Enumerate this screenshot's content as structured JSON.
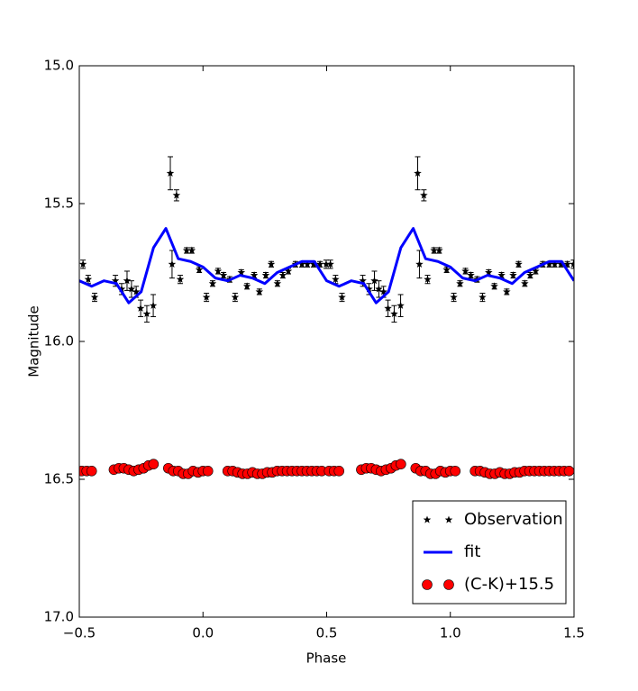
{
  "chart_data": {
    "type": "scatter",
    "xlabel": "Phase",
    "ylabel": "Magnitude",
    "xlim": [
      -0.5,
      1.5
    ],
    "ylim": [
      15.0,
      17.0
    ],
    "invert_y": true,
    "legend": "lower right",
    "xticks": [
      {
        "value": -0.5,
        "label": "−0.5"
      },
      {
        "value": 0.0,
        "label": "0.0"
      },
      {
        "value": 0.5,
        "label": "0.5"
      },
      {
        "value": 1.0,
        "label": "1.0"
      },
      {
        "value": 1.5,
        "label": "1.5"
      }
    ],
    "yticks": [
      {
        "value": 15.0,
        "label": "15.0"
      },
      {
        "value": 15.5,
        "label": "15.5"
      },
      {
        "value": 16.0,
        "label": "16.0"
      },
      {
        "value": 16.5,
        "label": "16.5"
      },
      {
        "value": 17.0,
        "label": "17.0"
      }
    ],
    "series": [
      {
        "name": "Observation",
        "type": "errorbar",
        "color": "#000000",
        "x": [
          -0.485,
          -0.464,
          -0.438,
          -0.354,
          -0.329,
          -0.307,
          -0.289,
          -0.27,
          -0.252,
          -0.227,
          -0.201,
          -0.132,
          -0.125,
          -0.107,
          -0.092,
          -0.066,
          -0.045,
          -0.015,
          0.014,
          0.039,
          0.061,
          0.083,
          0.108,
          0.13,
          0.155,
          0.178,
          0.207,
          0.228,
          0.254,
          0.276,
          0.301,
          0.323,
          0.345,
          0.374,
          0.4,
          0.422,
          0.447,
          0.473,
          0.498,
          0.515,
          0.536,
          0.562,
          0.646,
          0.671,
          0.693,
          0.711,
          0.73,
          0.748,
          0.773,
          0.799,
          0.868,
          0.875,
          0.893,
          0.908,
          0.934,
          0.955,
          0.985,
          1.014,
          1.039,
          1.061,
          1.083,
          1.108,
          1.13,
          1.155,
          1.178,
          1.207,
          1.228,
          1.254,
          1.276,
          1.301,
          1.323,
          1.345,
          1.374,
          1.4,
          1.422,
          1.447,
          1.473,
          1.498
        ],
        "values": [
          15.72,
          15.775,
          15.84,
          15.78,
          15.81,
          15.78,
          15.81,
          15.82,
          15.88,
          15.9,
          15.87,
          15.39,
          15.72,
          15.47,
          15.775,
          15.67,
          15.67,
          15.74,
          15.84,
          15.79,
          15.745,
          15.76,
          15.775,
          15.84,
          15.75,
          15.8,
          15.76,
          15.82,
          15.76,
          15.72,
          15.79,
          15.76,
          15.745,
          15.72,
          15.72,
          15.72,
          15.72,
          15.72,
          15.72,
          15.72,
          15.775,
          15.84,
          15.78,
          15.81,
          15.78,
          15.81,
          15.82,
          15.88,
          15.9,
          15.87,
          15.39,
          15.72,
          15.47,
          15.775,
          15.67,
          15.67,
          15.74,
          15.84,
          15.79,
          15.745,
          15.76,
          15.775,
          15.84,
          15.75,
          15.8,
          15.76,
          15.82,
          15.76,
          15.72,
          15.79,
          15.76,
          15.745,
          15.72,
          15.72,
          15.72,
          15.72,
          15.72,
          15.72
        ],
        "errors": [
          0.015,
          0.015,
          0.015,
          0.02,
          0.02,
          0.035,
          0.03,
          0.02,
          0.03,
          0.03,
          0.04,
          0.06,
          0.05,
          0.02,
          0.015,
          0.01,
          0.01,
          0.01,
          0.015,
          0.01,
          0.01,
          0.01,
          0.01,
          0.015,
          0.01,
          0.01,
          0.01,
          0.01,
          0.01,
          0.01,
          0.01,
          0.01,
          0.01,
          0.01,
          0.01,
          0.01,
          0.01,
          0.01,
          0.015,
          0.015,
          0.015,
          0.015,
          0.02,
          0.02,
          0.035,
          0.03,
          0.02,
          0.03,
          0.03,
          0.04,
          0.06,
          0.05,
          0.02,
          0.015,
          0.01,
          0.01,
          0.01,
          0.015,
          0.01,
          0.01,
          0.01,
          0.01,
          0.015,
          0.01,
          0.01,
          0.01,
          0.01,
          0.01,
          0.01,
          0.01,
          0.01,
          0.01,
          0.01,
          0.01,
          0.01,
          0.01,
          0.01,
          0.015
        ]
      },
      {
        "name": "fit",
        "type": "line",
        "color": "#0000ff",
        "x": [
          -0.5,
          -0.45,
          -0.4,
          -0.35,
          -0.3,
          -0.25,
          -0.2,
          -0.15,
          -0.1,
          -0.05,
          0.0,
          0.05,
          0.1,
          0.15,
          0.2,
          0.25,
          0.3,
          0.35,
          0.4,
          0.45,
          0.5,
          0.55,
          0.6,
          0.65,
          0.7,
          0.75,
          0.8,
          0.85,
          0.9,
          0.95,
          1.0,
          1.05,
          1.1,
          1.15,
          1.2,
          1.25,
          1.3,
          1.35,
          1.4,
          1.45,
          1.5
        ],
        "values": [
          15.78,
          15.8,
          15.78,
          15.79,
          15.86,
          15.82,
          15.66,
          15.59,
          15.7,
          15.71,
          15.73,
          15.77,
          15.78,
          15.76,
          15.77,
          15.79,
          15.75,
          15.73,
          15.71,
          15.71,
          15.78,
          15.8,
          15.78,
          15.79,
          15.86,
          15.82,
          15.66,
          15.59,
          15.7,
          15.71,
          15.73,
          15.77,
          15.78,
          15.76,
          15.77,
          15.79,
          15.75,
          15.73,
          15.71,
          15.71,
          15.78
        ]
      },
      {
        "name": "(C-K)+15.5",
        "type": "dots",
        "color": "#ff0000",
        "x": [
          -0.49,
          -0.47,
          -0.45,
          -0.36,
          -0.34,
          -0.32,
          -0.3,
          -0.28,
          -0.26,
          -0.24,
          -0.22,
          -0.2,
          -0.14,
          -0.12,
          -0.1,
          -0.08,
          -0.06,
          -0.04,
          -0.02,
          0.0,
          0.02,
          0.1,
          0.12,
          0.14,
          0.16,
          0.18,
          0.2,
          0.22,
          0.24,
          0.26,
          0.28,
          0.3,
          0.32,
          0.34,
          0.36,
          0.38,
          0.4,
          0.42,
          0.44,
          0.46,
          0.48,
          0.51,
          0.53,
          0.55,
          0.64,
          0.66,
          0.68,
          0.7,
          0.72,
          0.74,
          0.76,
          0.78,
          0.8,
          0.86,
          0.88,
          0.9,
          0.92,
          0.94,
          0.96,
          0.98,
          1.0,
          1.02,
          1.1,
          1.12,
          1.14,
          1.16,
          1.18,
          1.2,
          1.22,
          1.24,
          1.26,
          1.28,
          1.3,
          1.32,
          1.34,
          1.36,
          1.38,
          1.4,
          1.42,
          1.44,
          1.46,
          1.48
        ],
        "values": [
          16.47,
          16.47,
          16.47,
          16.465,
          16.46,
          16.46,
          16.465,
          16.47,
          16.465,
          16.46,
          16.45,
          16.445,
          16.46,
          16.47,
          16.47,
          16.48,
          16.48,
          16.47,
          16.475,
          16.47,
          16.47,
          16.47,
          16.47,
          16.475,
          16.48,
          16.48,
          16.475,
          16.48,
          16.48,
          16.475,
          16.475,
          16.47,
          16.47,
          16.47,
          16.47,
          16.47,
          16.47,
          16.47,
          16.47,
          16.47,
          16.47,
          16.47,
          16.47,
          16.47,
          16.465,
          16.46,
          16.46,
          16.465,
          16.47,
          16.465,
          16.46,
          16.45,
          16.445,
          16.46,
          16.47,
          16.47,
          16.48,
          16.48,
          16.47,
          16.475,
          16.47,
          16.47,
          16.47,
          16.47,
          16.475,
          16.48,
          16.48,
          16.475,
          16.48,
          16.48,
          16.475,
          16.475,
          16.47,
          16.47,
          16.47,
          16.47,
          16.47,
          16.47,
          16.47,
          16.47,
          16.47,
          16.47
        ]
      }
    ]
  }
}
